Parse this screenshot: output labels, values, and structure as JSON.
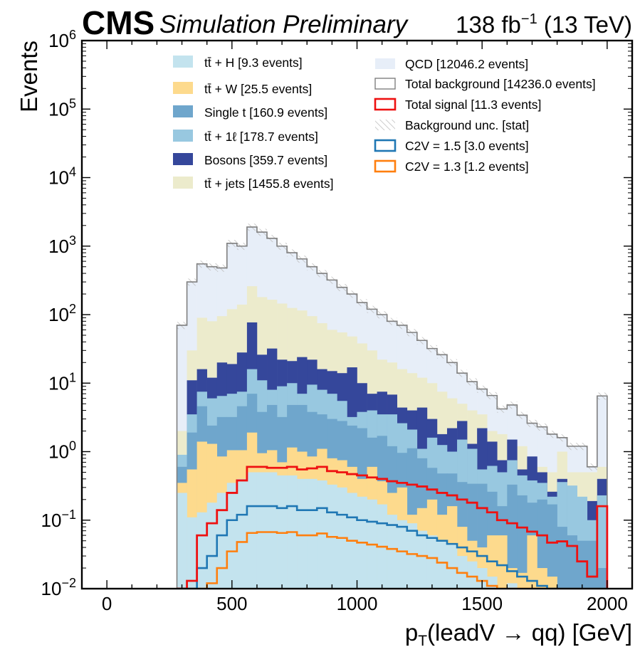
{
  "header": {
    "cms": "CMS",
    "simulation": "Simulation Preliminary",
    "lumi": "138 fb",
    "lumi_exp": "−1",
    "energy": " (13 TeV)"
  },
  "colors": {
    "ttH": "#c3e3ee",
    "ttW": "#fdda8d",
    "single_t": "#6fa6cc",
    "tt1l": "#98c8e0",
    "bosons": "#35479b",
    "ttjets": "#ecebcc",
    "qcd": "#e7eef8",
    "total_bkg": "#7f7f7f",
    "total_signal": "#ee1111",
    "c2v_15": "#1f77b4",
    "c2v_13": "#ff7f0e",
    "hatch": "#c8c8c8"
  },
  "legend": {
    "col1": [
      {
        "key": "ttH",
        "main": "tt̄ + H",
        "tail": " [9.3 events]"
      },
      {
        "key": "ttW",
        "main": "tt̄ + W",
        "tail": " [25.5 events]"
      },
      {
        "key": "single_t",
        "main": "Single t",
        "tail": " [160.9 events]"
      },
      {
        "key": "tt1l",
        "main": "tt̄ + 1ℓ",
        "tail": " [178.7 events]"
      },
      {
        "key": "bosons",
        "main": "Bosons",
        "tail": " [359.7 events]"
      },
      {
        "key": "ttjets",
        "main": "tt̄ + jets",
        "tail": " [1455.8 events]"
      }
    ],
    "col2": [
      {
        "key": "qcd",
        "style": "fill",
        "label": "QCD [12046.2 events]"
      },
      {
        "key": "total_bkg",
        "style": "outline",
        "label": "Total background [14236.0 events]"
      },
      {
        "key": "total_signal",
        "style": "outline-thick",
        "label": "Total signal [11.3 events]"
      },
      {
        "key": "hatch",
        "style": "hatch",
        "label": "Background unc. [stat]"
      },
      {
        "key": "c2v_15",
        "style": "outline-thick",
        "label": "C2V = 1.5 [3.0 events]"
      },
      {
        "key": "c2v_13",
        "style": "outline-thick",
        "label": "C2V = 1.3 [1.2 events]"
      }
    ]
  },
  "chart_data": {
    "type": "histogram-stacked-log",
    "xlabel": "pT(leadV → qq) [GeV]",
    "xlabel_parts": {
      "p": "p",
      "sub": "T",
      "rest": "(leadV → qq) [GeV]"
    },
    "ylabel": "Events",
    "xlim": [
      -100,
      2100
    ],
    "ylim": [
      0.01,
      1000000
    ],
    "y_log": true,
    "x_ticks": [
      0,
      500,
      1000,
      1500,
      2000
    ],
    "y_tick_exponents": [
      -2,
      -1,
      0,
      1,
      2,
      3,
      4,
      5,
      6
    ],
    "bin_edges": [
      280,
      320,
      360,
      400,
      440,
      480,
      520,
      560,
      600,
      640,
      680,
      720,
      760,
      800,
      840,
      880,
      920,
      960,
      1000,
      1040,
      1080,
      1120,
      1160,
      1200,
      1240,
      1280,
      1320,
      1360,
      1400,
      1440,
      1480,
      1520,
      1560,
      1600,
      1640,
      1680,
      1720,
      1760,
      1800,
      1840,
      1880,
      1920,
      1960,
      2000
    ],
    "stack_order": [
      "ttH",
      "ttW",
      "single_t",
      "tt1l",
      "bosons",
      "ttjets",
      "qcd"
    ],
    "stack_cumulative": {
      "ttH": [
        0.25,
        0.11,
        0.13,
        0.18,
        0.25,
        0.35,
        0.4,
        0.5,
        0.5,
        0.5,
        0.45,
        0.45,
        0.4,
        0.4,
        0.38,
        0.33,
        0.3,
        0.25,
        0.22,
        0.2,
        0.17,
        0.12,
        0.1,
        0.09,
        0.07,
        0.06,
        0.05,
        0.045,
        0.03,
        0.025,
        0.02,
        0.015,
        0.01,
        0.012,
        0.01,
        0.01,
        0.01,
        0.01,
        0.01,
        0.01,
        0.01,
        0.01,
        0.01
      ],
      "ttW": [
        0.35,
        0.55,
        1.4,
        1.3,
        0.85,
        1.05,
        1.05,
        1.9,
        0.95,
        1.05,
        0.7,
        1.15,
        1.0,
        0.85,
        1.1,
        0.8,
        0.75,
        0.6,
        0.4,
        0.6,
        0.37,
        0.25,
        0.3,
        0.12,
        0.15,
        0.2,
        0.12,
        0.16,
        0.08,
        0.05,
        0.04,
        0.06,
        0.06,
        0.02,
        0.017,
        0.06,
        0.02,
        0.015,
        0.01,
        0.01,
        0.01,
        0.01,
        0.01
      ],
      "single_t": [
        0.6,
        1.9,
        4.6,
        2.4,
        3.2,
        3.2,
        4.6,
        7.0,
        3.8,
        4.8,
        3.2,
        4.8,
        4.8,
        3.8,
        3.5,
        3.0,
        2.8,
        2.4,
        2.2,
        1.6,
        1.7,
        1.2,
        0.96,
        1.12,
        0.8,
        0.58,
        0.48,
        0.48,
        0.36,
        0.34,
        0.34,
        0.26,
        0.16,
        0.33,
        0.23,
        0.18,
        0.2,
        0.17,
        0.08,
        0.06,
        0.05,
        0.05,
        0.02
      ],
      "tt1l": [
        0.9,
        3.5,
        7.5,
        6.0,
        6.5,
        7.0,
        7.5,
        16.0,
        11.0,
        8.0,
        9.0,
        10.0,
        7.0,
        9.5,
        8.0,
        7.0,
        5.5,
        3.2,
        3.8,
        4.0,
        3.5,
        3.5,
        2.6,
        2.1,
        1.1,
        1.6,
        1.25,
        1.0,
        1.5,
        1.1,
        0.55,
        0.62,
        0.5,
        0.75,
        0.45,
        0.38,
        0.35,
        0.22,
        0.36,
        0.32,
        0.22,
        0.1,
        0.23
      ],
      "bosons": [
        0.8,
        11.0,
        16.0,
        12.0,
        20.0,
        19.0,
        28.0,
        77.0,
        26.0,
        32.0,
        22.0,
        21.0,
        24.0,
        22.0,
        16.0,
        15.0,
        14.0,
        17.0,
        10.0,
        7.0,
        7.5,
        6.8,
        4.4,
        4.0,
        4.4,
        3.0,
        1.8,
        2.2,
        2.8,
        1.3,
        2.2,
        1.4,
        0.75,
        1.5,
        0.55,
        0.85,
        0.5,
        0.26,
        0.4,
        0.26,
        0.15,
        0.19,
        0.4
      ],
      "ttjets": [
        2.0,
        30.0,
        90.0,
        80.0,
        95.0,
        120.0,
        140.0,
        260.0,
        180.0,
        165.0,
        145.0,
        125.0,
        115.0,
        95.0,
        75.0,
        60.0,
        55.0,
        48.0,
        38.0,
        30.0,
        22.0,
        20.0,
        16.0,
        14.0,
        12.0,
        10.0,
        7.5,
        6.0,
        5.0,
        4.0,
        3.5,
        2.0,
        1.8,
        1.0,
        1.2,
        0.8,
        0.6,
        0.5,
        1.0,
        0.5,
        0.5,
        0.5,
        0.6
      ],
      "qcd": [
        70.0,
        300.0,
        550.0,
        500.0,
        480.0,
        1100.0,
        1000.0,
        1900.0,
        1600.0,
        1300.0,
        1000.0,
        800.0,
        650.0,
        500.0,
        400.0,
        320.0,
        250.0,
        200.0,
        150.0,
        120.0,
        100.0,
        80.0,
        70.0,
        55.0,
        42.0,
        32.0,
        26.0,
        20.0,
        14.0,
        10.5,
        8.2,
        6.6,
        4.2,
        4.8,
        3.4,
        2.6,
        2.3,
        1.8,
        1.6,
        1.2,
        1.2,
        0.6,
        6.5
      ]
    },
    "bkg_unc_rel": 0.12,
    "signal_lines": {
      "total_signal": [
        0.003,
        0.013,
        0.06,
        0.09,
        0.14,
        0.25,
        0.38,
        0.6,
        0.6,
        0.58,
        0.58,
        0.6,
        0.55,
        0.57,
        0.6,
        0.52,
        0.5,
        0.47,
        0.45,
        0.42,
        0.4,
        0.37,
        0.35,
        0.33,
        0.31,
        0.28,
        0.25,
        0.23,
        0.2,
        0.18,
        0.15,
        0.13,
        0.1,
        0.09,
        0.078,
        0.068,
        0.06,
        0.047,
        0.049,
        0.042,
        0.025,
        0.015,
        0.16
      ],
      "c2v_15": [
        0.002,
        0.006,
        0.02,
        0.03,
        0.06,
        0.1,
        0.12,
        0.16,
        0.16,
        0.16,
        0.15,
        0.16,
        0.14,
        0.14,
        0.15,
        0.13,
        0.12,
        0.11,
        0.1,
        0.095,
        0.09,
        0.085,
        0.08,
        0.07,
        0.06,
        0.055,
        0.05,
        0.045,
        0.04,
        0.035,
        0.03,
        0.025,
        0.022,
        0.018,
        0.015,
        0.013,
        0.011,
        0.0095,
        0.009,
        0.008,
        0.006,
        0.004,
        0.002
      ],
      "c2v_13": [
        0.001,
        0.002,
        0.007,
        0.012,
        0.02,
        0.035,
        0.048,
        0.065,
        0.067,
        0.067,
        0.065,
        0.067,
        0.06,
        0.06,
        0.064,
        0.057,
        0.055,
        0.05,
        0.047,
        0.044,
        0.041,
        0.038,
        0.035,
        0.032,
        0.03,
        0.028,
        0.024,
        0.02,
        0.017,
        0.015,
        0.013,
        0.011,
        0.009,
        0.008,
        0.007,
        0.006,
        0.006,
        0.005,
        0.004,
        0.003,
        0.002,
        0.0015,
        0.001
      ]
    }
  }
}
